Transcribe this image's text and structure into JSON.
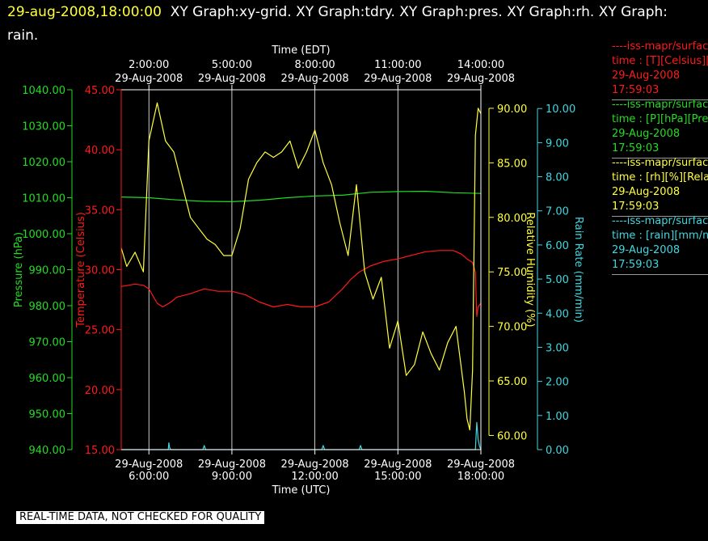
{
  "title": {
    "datetime": "29-aug-2008,18:00:00",
    "rest": "XY Graph:xy-grid.  XY Graph:tdry.  XY Graph:pres.  XY Graph:rh.  XY Graph: rain."
  },
  "colors": {
    "temperature": "#ff1a1a",
    "pressure": "#22dd22",
    "humidity": "#ffff3a",
    "rain": "#3fd8e0",
    "grid": "#ffffff"
  },
  "legend": [
    {
      "name": "----iss-mapr/surface",
      "field": "time : [T][Celsius][T",
      "date": "29-Aug-2008",
      "time": "17:59:03",
      "color": "#ff1a1a"
    },
    {
      "name": "----iss-mapr/surface",
      "field": "time : [P][hPa][Pres",
      "date": "29-Aug-2008",
      "time": "17:59:03",
      "color": "#22dd22"
    },
    {
      "name": "----iss-mapr/surface",
      "field": "time : [rh][%][Relati",
      "date": "29-Aug-2008",
      "time": "17:59:03",
      "color": "#ffff3a"
    },
    {
      "name": "----iss-mapr/surface",
      "field": "time : [rain][mm/min",
      "date": "29-Aug-2008",
      "time": "17:59:03",
      "color": "#3fd8e0"
    }
  ],
  "footer_badge": "REAL-TIME DATA, NOT CHECKED FOR QUALITY",
  "chart_data": {
    "type": "line",
    "grid": true,
    "x_top_label": "Time (EDT)",
    "x_bottom_label": "Time (UTC)",
    "x_range_utc_hours": [
      5.0,
      18.0
    ],
    "x_bottom_ticks": [
      {
        "t": 6,
        "date": "29-Aug-2008",
        "time": "6:00:00"
      },
      {
        "t": 9,
        "date": "29-Aug-2008",
        "time": "9:00:00"
      },
      {
        "t": 12,
        "date": "29-Aug-2008",
        "time": "12:00:00"
      },
      {
        "t": 15,
        "date": "29-Aug-2008",
        "time": "15:00:00"
      },
      {
        "t": 18,
        "date": "29-Aug-2008",
        "time": "18:00:00"
      }
    ],
    "x_top_ticks": [
      {
        "t": 6,
        "time": "2:00:00",
        "date": "29-Aug-2008"
      },
      {
        "t": 9,
        "time": "5:00:00",
        "date": "29-Aug-2008"
      },
      {
        "t": 12,
        "time": "8:00:00",
        "date": "29-Aug-2008"
      },
      {
        "t": 15,
        "time": "11:00:00",
        "date": "29-Aug-2008"
      },
      {
        "t": 18,
        "time": "14:00:00",
        "date": "29-Aug-2008"
      }
    ],
    "axes": {
      "pressure": {
        "label": "Pressure (hPa)",
        "range": [
          940,
          1040
        ],
        "ticks": [
          "940.00",
          "950.00",
          "960.00",
          "970.00",
          "980.00",
          "990.00",
          "1000.00",
          "1010.00",
          "1020.00",
          "1030.00",
          "1040.00"
        ]
      },
      "temperature": {
        "label": "Temperature (Celsius)",
        "range": [
          15,
          45
        ],
        "ticks": [
          "15.00",
          "20.00",
          "25.00",
          "30.00",
          "35.00",
          "40.00",
          "45.00"
        ]
      },
      "humidity": {
        "label": "Relative Humidity (%)",
        "range": [
          58.7,
          91.7
        ],
        "tick_values": [
          60,
          65,
          70,
          75,
          80,
          85,
          90
        ],
        "ticks": [
          "60.00",
          "65.00",
          "70.00",
          "75.00",
          "80.00",
          "85.00",
          "90.00"
        ]
      },
      "rain": {
        "label": "Rain Rate (mm/min)",
        "range": [
          0,
          10.55
        ],
        "tick_values": [
          0,
          1,
          2,
          3,
          4,
          5,
          6,
          7,
          8,
          9,
          10
        ],
        "ticks": [
          "0.00",
          "1.00",
          "2.00",
          "3.00",
          "4.00",
          "5.00",
          "6.00",
          "7.00",
          "8.00",
          "9.00",
          "10.00"
        ]
      }
    },
    "series": [
      {
        "name": "tdry",
        "axis": "temperature",
        "color": "#ff1a1a",
        "x": [
          5.0,
          5.5,
          5.8,
          6.0,
          6.3,
          6.5,
          6.8,
          7.0,
          7.5,
          8.0,
          8.5,
          9.0,
          9.5,
          10.0,
          10.5,
          11.0,
          11.5,
          12.0,
          12.5,
          13.0,
          13.3,
          13.6,
          14.0,
          14.5,
          15.0,
          15.5,
          16.0,
          16.5,
          17.0,
          17.3,
          17.5,
          17.7,
          17.8,
          17.85,
          17.9,
          18.0
        ],
        "y": [
          28.6,
          28.8,
          28.7,
          28.4,
          27.2,
          26.9,
          27.3,
          27.7,
          28.0,
          28.4,
          28.2,
          28.2,
          27.9,
          27.3,
          26.9,
          27.1,
          26.9,
          26.9,
          27.3,
          28.4,
          29.2,
          29.8,
          30.3,
          30.7,
          30.9,
          31.2,
          31.5,
          31.6,
          31.6,
          31.3,
          30.9,
          30.6,
          29.8,
          26.1,
          26.9,
          27.2
        ]
      },
      {
        "name": "pres",
        "axis": "pressure",
        "color": "#22dd22",
        "x": [
          5.0,
          6.0,
          7.0,
          8.0,
          9.0,
          10.0,
          11.0,
          12.0,
          13.0,
          14.0,
          15.0,
          16.0,
          17.0,
          18.0
        ],
        "y": [
          1010.2,
          1010.0,
          1009.4,
          1009.0,
          1008.9,
          1009.3,
          1010.0,
          1010.5,
          1010.7,
          1011.5,
          1011.7,
          1011.8,
          1011.4,
          1011.2
        ]
      },
      {
        "name": "rh",
        "axis": "humidity",
        "color": "#ffff3a",
        "x": [
          5.0,
          5.2,
          5.5,
          5.8,
          6.0,
          6.3,
          6.6,
          6.9,
          7.2,
          7.5,
          7.8,
          8.1,
          8.4,
          8.7,
          9.0,
          9.3,
          9.6,
          9.9,
          10.2,
          10.5,
          10.8,
          11.1,
          11.4,
          11.7,
          12.0,
          12.3,
          12.6,
          12.9,
          13.2,
          13.5,
          13.8,
          14.1,
          14.4,
          14.7,
          15.0,
          15.3,
          15.6,
          15.9,
          16.2,
          16.5,
          16.8,
          17.1,
          17.4,
          17.5,
          17.6,
          17.7,
          17.8,
          17.9,
          18.0
        ],
        "y": [
          77.2,
          75.5,
          76.8,
          75.0,
          87.0,
          90.5,
          87.0,
          86.0,
          83.0,
          80.0,
          79.0,
          78.0,
          77.5,
          76.5,
          76.5,
          79.0,
          83.5,
          85.0,
          86.0,
          85.5,
          86.0,
          87.0,
          84.5,
          86.0,
          88.0,
          85.0,
          83.0,
          79.5,
          76.5,
          83.0,
          75.0,
          72.5,
          74.5,
          68.0,
          70.5,
          65.5,
          66.5,
          69.5,
          67.5,
          66.0,
          68.5,
          70.0,
          64.0,
          61.5,
          60.5,
          66.0,
          87.5,
          90.0,
          89.5
        ]
      },
      {
        "name": "rain",
        "axis": "rain",
        "color": "#3fd8e0",
        "x": [
          5.0,
          6.7,
          6.72,
          6.75,
          6.8,
          7.0,
          7.95,
          8.0,
          8.05,
          9.0,
          10.0,
          11.0,
          12.25,
          12.3,
          12.35,
          13.0,
          13.6,
          13.65,
          13.7,
          14.0,
          15.0,
          16.0,
          17.0,
          17.8,
          17.85,
          17.9,
          17.95,
          18.0
        ],
        "y": [
          0.0,
          0.0,
          0.2,
          0.05,
          0.0,
          0.0,
          0.0,
          0.12,
          0.0,
          0.0,
          0.0,
          0.0,
          0.0,
          0.12,
          0.0,
          0.0,
          0.0,
          0.12,
          0.0,
          0.0,
          0.0,
          0.0,
          0.0,
          0.0,
          0.8,
          0.3,
          0.1,
          0.0
        ]
      }
    ]
  }
}
